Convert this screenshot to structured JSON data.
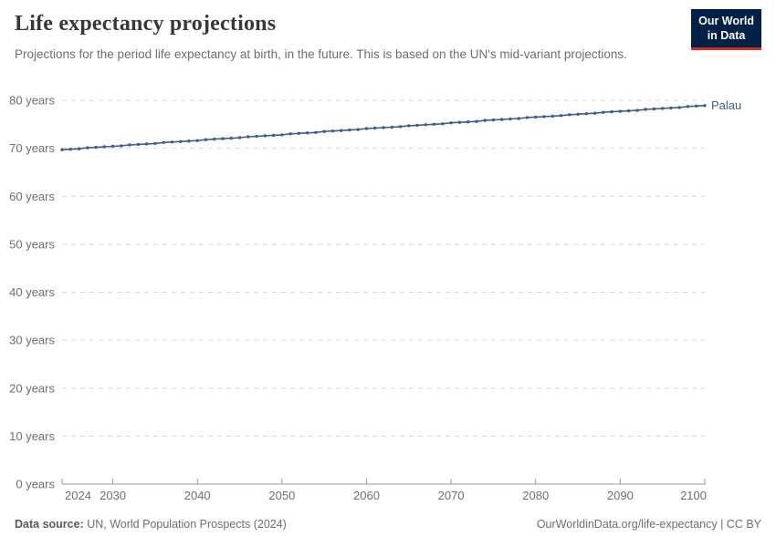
{
  "header": {
    "title": "Life expectancy projections",
    "subtitle": "Projections for the period life expectancy at birth, in the future. This is based on the UN's mid-variant projections.",
    "logo": {
      "line1": "Our World",
      "line2": "in Data",
      "bg": "#002147",
      "accent": "#d62b26"
    }
  },
  "chart_data": {
    "type": "line",
    "title": "Life expectancy projections",
    "x": [
      2024,
      2025,
      2026,
      2027,
      2028,
      2029,
      2030,
      2031,
      2032,
      2033,
      2034,
      2035,
      2036,
      2037,
      2038,
      2039,
      2040,
      2041,
      2042,
      2043,
      2044,
      2045,
      2046,
      2047,
      2048,
      2049,
      2050,
      2051,
      2052,
      2053,
      2054,
      2055,
      2056,
      2057,
      2058,
      2059,
      2060,
      2061,
      2062,
      2063,
      2064,
      2065,
      2066,
      2067,
      2068,
      2069,
      2070,
      2071,
      2072,
      2073,
      2074,
      2075,
      2076,
      2077,
      2078,
      2079,
      2080,
      2081,
      2082,
      2083,
      2084,
      2085,
      2086,
      2087,
      2088,
      2089,
      2090,
      2091,
      2092,
      2093,
      2094,
      2095,
      2096,
      2097,
      2098,
      2099,
      2100
    ],
    "series": [
      {
        "name": "Palau",
        "color": "#3d5c93",
        "values": [
          69.7,
          69.8,
          69.9,
          70.1,
          70.2,
          70.3,
          70.4,
          70.5,
          70.7,
          70.8,
          70.9,
          71.0,
          71.2,
          71.3,
          71.4,
          71.5,
          71.6,
          71.8,
          71.9,
          72.0,
          72.1,
          72.2,
          72.4,
          72.5,
          72.6,
          72.7,
          72.8,
          73.0,
          73.1,
          73.2,
          73.3,
          73.5,
          73.6,
          73.7,
          73.8,
          73.9,
          74.1,
          74.2,
          74.3,
          74.4,
          74.5,
          74.7,
          74.8,
          74.9,
          75.0,
          75.1,
          75.3,
          75.4,
          75.5,
          75.6,
          75.8,
          75.9,
          76.0,
          76.1,
          76.2,
          76.4,
          76.5,
          76.6,
          76.7,
          76.8,
          77.0,
          77.1,
          77.2,
          77.3,
          77.5,
          77.6,
          77.7,
          77.8,
          77.9,
          78.1,
          78.2,
          78.3,
          78.4,
          78.5,
          78.7,
          78.8,
          78.9
        ]
      }
    ],
    "xlabel": "",
    "ylabel": "",
    "ylim": [
      0,
      80
    ],
    "xlim": [
      2024,
      2100
    ],
    "yticks": [
      0,
      10,
      20,
      30,
      40,
      50,
      60,
      70,
      80
    ],
    "ytick_format": "{v} years",
    "xticks": [
      2024,
      2030,
      2040,
      2050,
      2060,
      2070,
      2080,
      2090,
      2100
    ],
    "grid": "horizontal-dashed",
    "legend_position": "end-of-line-label",
    "colors": {
      "grid": "#d7d7d7",
      "axis": "#999999",
      "tick_text": "#6e6e6e"
    }
  },
  "footer": {
    "source_label": "Data source:",
    "source_value": "UN, World Population Prospects (2024)",
    "rights": "OurWorldinData.org/life-expectancy | CC BY"
  }
}
